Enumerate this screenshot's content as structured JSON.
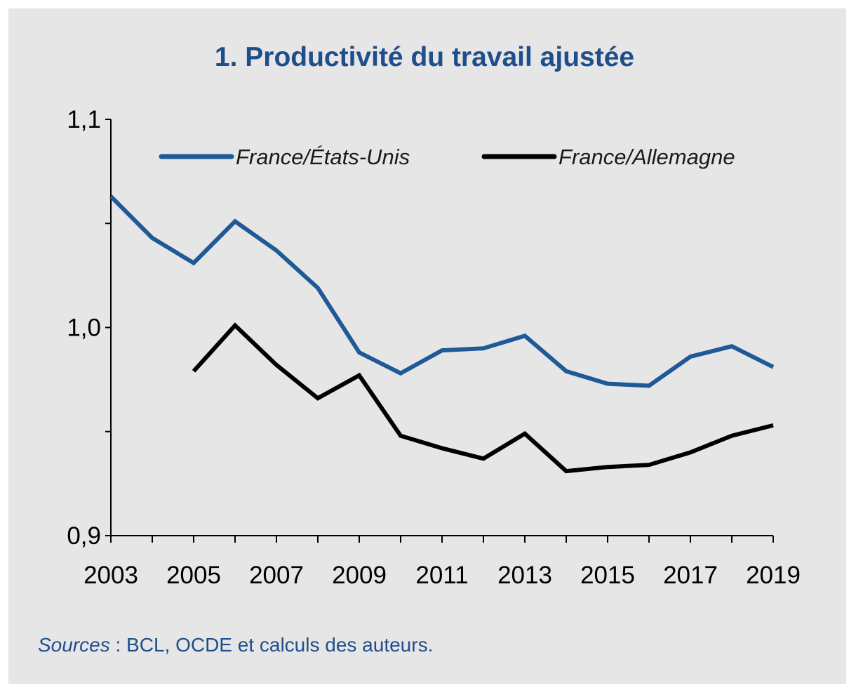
{
  "colors": {
    "background": "#e6e6e6",
    "title": "#1f4e8c",
    "source": "#1f4e8c"
  },
  "chart_data": {
    "type": "line",
    "title": "1. Productivité du travail ajustée",
    "xlabel": "",
    "ylabel": "",
    "x": [
      2003,
      2004,
      2005,
      2006,
      2007,
      2008,
      2009,
      2010,
      2011,
      2012,
      2013,
      2014,
      2015,
      2016,
      2017,
      2018,
      2019
    ],
    "x_tick_labels": [
      "2003",
      "2005",
      "2007",
      "2009",
      "2011",
      "2013",
      "2015",
      "2017",
      "2019"
    ],
    "y_tick_labels": [
      "1,1",
      "1,0",
      "0,9"
    ],
    "ylim": [
      0.9,
      1.1
    ],
    "y_ticks": [
      0.9,
      0.95,
      1.0,
      1.05,
      1.1
    ],
    "grid": false,
    "legend_position": "top",
    "series": [
      {
        "name": "France/États-Unis",
        "color": "#1f5a96",
        "values": [
          1.063,
          1.043,
          1.031,
          1.051,
          1.037,
          1.019,
          0.988,
          0.978,
          0.989,
          0.99,
          0.996,
          0.979,
          0.973,
          0.972,
          0.986,
          0.991,
          0.981
        ]
      },
      {
        "name": "France/Allemagne",
        "color": "#000000",
        "values": [
          null,
          null,
          0.979,
          1.001,
          0.982,
          0.966,
          0.977,
          0.948,
          0.942,
          0.937,
          0.949,
          0.931,
          0.933,
          0.934,
          0.94,
          0.948,
          0.953
        ]
      }
    ]
  },
  "source": {
    "label": "Sources",
    "text": " : BCL, OCDE et calculs des auteurs."
  }
}
